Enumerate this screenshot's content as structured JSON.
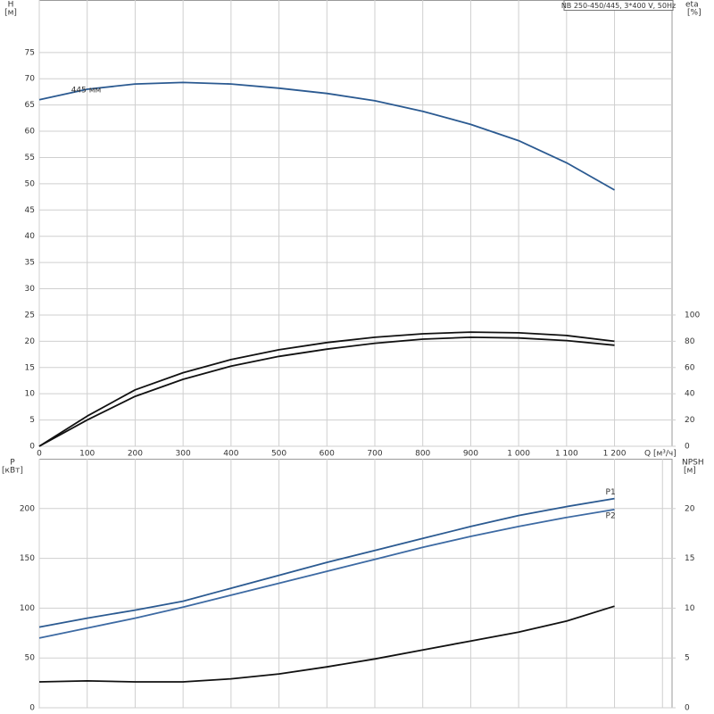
{
  "chart_data": [
    {
      "type": "line",
      "title": "NB 250-450/445, 3*400 V, 50Hz",
      "x": [
        0,
        100,
        200,
        300,
        400,
        500,
        600,
        700,
        800,
        900,
        1000,
        1100,
        1200
      ],
      "xlim": [
        0,
        1320
      ],
      "xticks": [
        0,
        100,
        200,
        300,
        400,
        500,
        600,
        700,
        800,
        900,
        {
          "value": 1000,
          "label": "1 000"
        },
        {
          "value": 1100,
          "label": "1 100"
        },
        {
          "value": 1200,
          "label": "1 200"
        }
      ],
      "x_label": "Q [м³/ч]",
      "y_label": "H",
      "y_unit": "[м]",
      "ylim": [
        0,
        85
      ],
      "yticks": [
        0,
        5,
        10,
        15,
        20,
        25,
        30,
        35,
        40,
        45,
        50,
        55,
        60,
        65,
        70,
        75
      ],
      "y2_label": "eta",
      "y2_unit": "[%]",
      "y2lim": [
        0,
        340
      ],
      "y2ticks": [
        0,
        20,
        40,
        60,
        80,
        100
      ],
      "grid": true,
      "series": [
        {
          "name": "445 мм",
          "color": "#2b5a91",
          "values": [
            66,
            68,
            69,
            69.3,
            69,
            68.2,
            67.2,
            65.8,
            63.8,
            61.3,
            58.2,
            54,
            48.8
          ]
        },
        {
          "color": "#111111",
          "axis": "y2",
          "values": [
            0,
            23,
            43,
            56,
            66,
            73.5,
            79,
            83,
            85.7,
            87,
            86.4,
            84.4,
            80
          ]
        },
        {
          "color": "#111111",
          "axis": "y2",
          "values": [
            0,
            20,
            38,
            51,
            61,
            68.5,
            74,
            78.5,
            81.6,
            83,
            82.5,
            80.5,
            77
          ]
        }
      ]
    },
    {
      "type": "line",
      "x": [
        0,
        100,
        200,
        300,
        400,
        500,
        600,
        700,
        800,
        900,
        1000,
        1100,
        1200
      ],
      "xlim": [
        0,
        1320
      ],
      "xticks": [
        0,
        100,
        200,
        300,
        400,
        500,
        600,
        700,
        800,
        900,
        1000,
        1100,
        1200,
        1300
      ],
      "y_label": "P",
      "y_unit": "[кВт]",
      "ylim": [
        0,
        250
      ],
      "yticks": [
        0,
        50,
        100,
        150,
        200
      ],
      "y2_label": "NPSH",
      "y2_unit": "[м]",
      "y2lim": [
        0,
        25
      ],
      "y2ticks": [
        0,
        5,
        10,
        15,
        20
      ],
      "grid": true,
      "series": [
        {
          "name": "P1",
          "color": "#2b5a91",
          "values": [
            81,
            90,
            98,
            107,
            120,
            133,
            146,
            158,
            170,
            182,
            193,
            202,
            210
          ]
        },
        {
          "name": "P2",
          "color": "#3d6aa3",
          "values": [
            70,
            80,
            90,
            101,
            113,
            125,
            137,
            149,
            161,
            172,
            182,
            191,
            199
          ]
        },
        {
          "color": "#111111",
          "axis": "y2",
          "values": [
            2.6,
            2.7,
            2.6,
            2.6,
            2.9,
            3.4,
            4.1,
            4.9,
            5.8,
            6.7,
            7.6,
            8.7,
            10.2
          ]
        }
      ]
    }
  ]
}
